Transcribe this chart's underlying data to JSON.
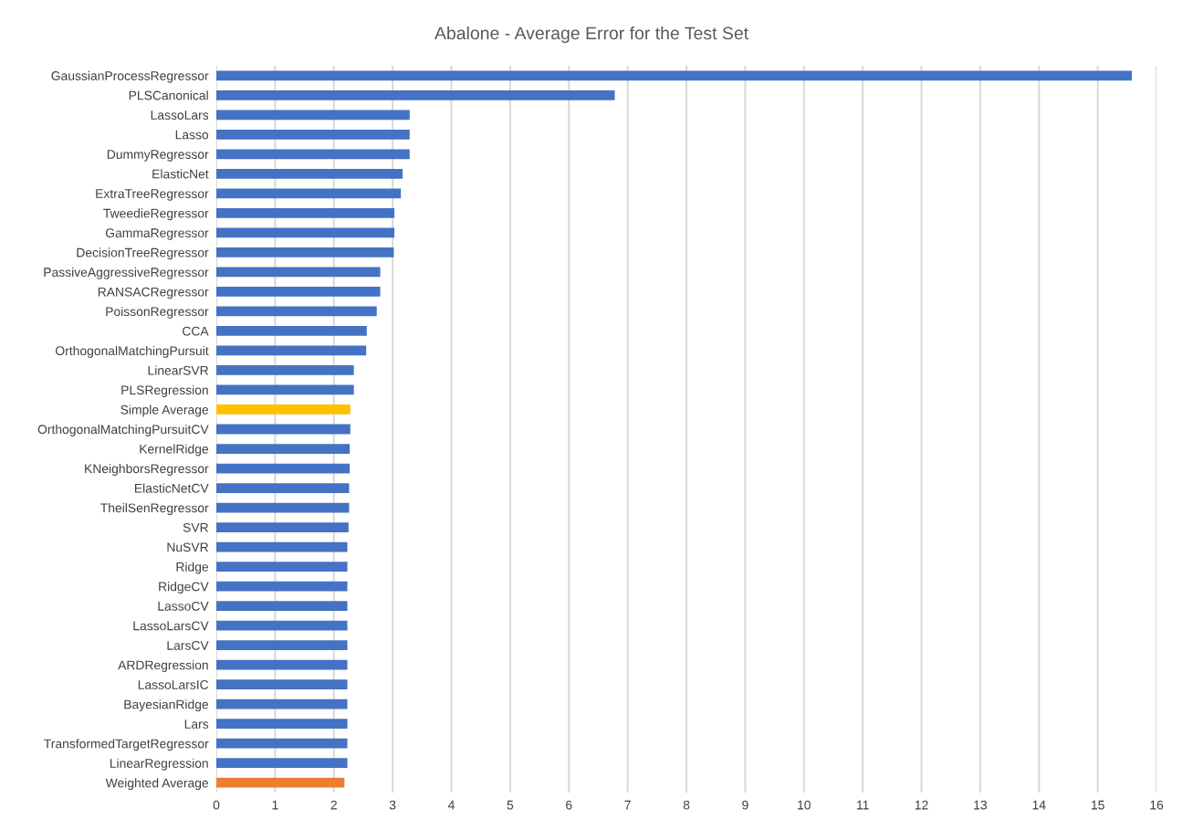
{
  "chart_data": {
    "type": "bar",
    "orientation": "horizontal",
    "title": "Abalone - Average Error for the Test Set",
    "categories": [
      "GaussianProcessRegressor",
      "PLSCanonical",
      "LassoLars",
      "Lasso",
      "DummyRegressor",
      "ElasticNet",
      "ExtraTreeRegressor",
      "TweedieRegressor",
      "GammaRegressor",
      "DecisionTreeRegressor",
      "PassiveAggressiveRegressor",
      "RANSACRegressor",
      "PoissonRegressor",
      "CCA",
      "OrthogonalMatchingPursuit",
      "LinearSVR",
      "PLSRegression",
      "Simple Average",
      "OrthogonalMatchingPursuitCV",
      "KernelRidge",
      "KNeighborsRegressor",
      "ElasticNetCV",
      "TheilSenRegressor",
      "SVR",
      "NuSVR",
      "Ridge",
      "RidgeCV",
      "LassoCV",
      "LassoLarsCV",
      "LarsCV",
      "ARDRegression",
      "LassoLarsIC",
      "BayesianRidge",
      "Lars",
      "TransformedTargetRegressor",
      "LinearRegression",
      "Weighted Average"
    ],
    "values": [
      15.58,
      6.78,
      3.29,
      3.29,
      3.29,
      3.17,
      3.14,
      3.03,
      3.03,
      3.02,
      2.79,
      2.79,
      2.73,
      2.56,
      2.55,
      2.34,
      2.34,
      2.28,
      2.28,
      2.27,
      2.27,
      2.26,
      2.26,
      2.25,
      2.23,
      2.23,
      2.23,
      2.23,
      2.23,
      2.23,
      2.23,
      2.23,
      2.23,
      2.23,
      2.23,
      2.23,
      2.18
    ],
    "colors": [
      "#4472c4",
      "#4472c4",
      "#4472c4",
      "#4472c4",
      "#4472c4",
      "#4472c4",
      "#4472c4",
      "#4472c4",
      "#4472c4",
      "#4472c4",
      "#4472c4",
      "#4472c4",
      "#4472c4",
      "#4472c4",
      "#4472c4",
      "#4472c4",
      "#4472c4",
      "#ffc000",
      "#4472c4",
      "#4472c4",
      "#4472c4",
      "#4472c4",
      "#4472c4",
      "#4472c4",
      "#4472c4",
      "#4472c4",
      "#4472c4",
      "#4472c4",
      "#4472c4",
      "#4472c4",
      "#4472c4",
      "#4472c4",
      "#4472c4",
      "#4472c4",
      "#4472c4",
      "#4472c4",
      "#ed7d31"
    ],
    "xlim": [
      0,
      16
    ],
    "xticks": [
      0,
      1,
      2,
      3,
      4,
      5,
      6,
      7,
      8,
      9,
      10,
      11,
      12,
      13,
      14,
      15,
      16
    ],
    "grid": "x"
  }
}
